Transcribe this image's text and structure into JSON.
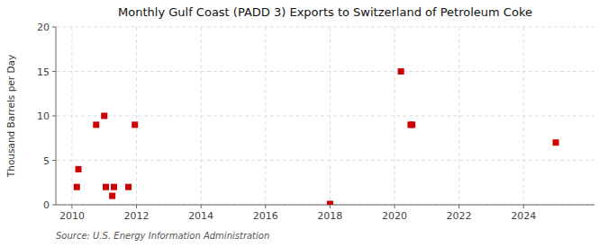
{
  "chart_data": {
    "type": "scatter",
    "title": "Monthly Gulf Coast (PADD 3) Exports to Switzerland of Petroleum Coke",
    "ylabel": "Thousand Barrels per Day",
    "source": "Source: U.S. Energy Information Administration",
    "x": [
      2010.2,
      2010.15,
      2010.75,
      2011.0,
      2011.05,
      2011.25,
      2011.3,
      2011.75,
      2011.95,
      2018.0,
      2020.2,
      2020.5,
      2020.55,
      2025.0
    ],
    "values": [
      4,
      2,
      9,
      10,
      2,
      1,
      2,
      2,
      9,
      0.1,
      15,
      9,
      9,
      7
    ],
    "color": "#cc0000",
    "marker": "square",
    "xlim": [
      2009.5,
      2026.2
    ],
    "ylim": [
      0,
      20
    ],
    "xticks": [
      2010,
      2012,
      2014,
      2016,
      2018,
      2020,
      2022,
      2024
    ],
    "yticks": [
      0,
      5,
      10,
      15,
      20
    ],
    "grid": true
  }
}
